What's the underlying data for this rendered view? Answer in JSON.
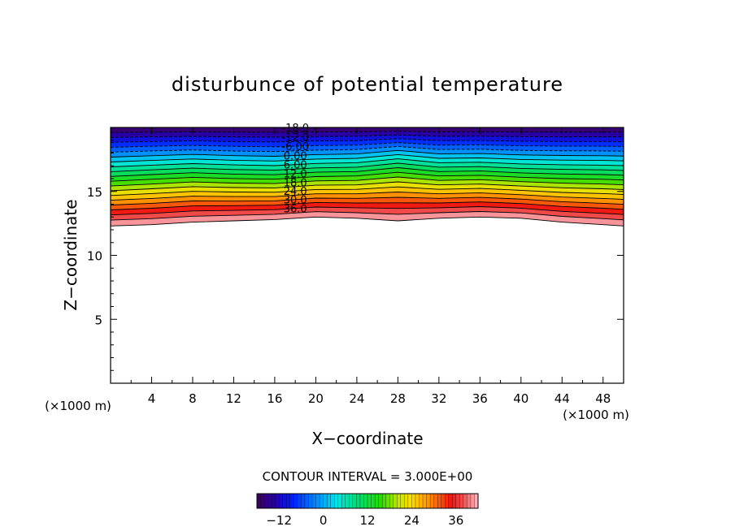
{
  "chart_data": {
    "type": "heatmap",
    "title": "disturbunce of potential temperature",
    "xlabel": "X−coordinate",
    "ylabel": "Z−coordinate",
    "xunit": "(×1000 m)",
    "zunit": "(×1000 m)",
    "xlim": [
      0,
      50
    ],
    "ylim": [
      0,
      20
    ],
    "xticks": [
      "4",
      "8",
      "12",
      "16",
      "20",
      "24",
      "28",
      "32",
      "36",
      "40",
      "44",
      "48"
    ],
    "yticks": [
      "5",
      "10",
      "15"
    ],
    "contour_interval_text": "CONTOUR INTERVAL = 3.000E+00",
    "contour_labels": [
      "-18.0",
      "-12.0",
      "-6.00",
      "0.00",
      "6.00",
      "12.0",
      "18.0",
      "24.0",
      "30.0",
      "36.0"
    ],
    "levels": [
      -18,
      -15,
      -12,
      -9,
      -6,
      -3,
      0,
      3,
      6,
      9,
      12,
      15,
      18,
      21,
      24,
      27,
      30,
      33,
      36,
      39,
      42
    ],
    "colorbar_ticks": [
      "−12",
      "0",
      "12",
      "24",
      "36"
    ],
    "colorbar_range": [
      -18,
      42
    ],
    "profile_x": [
      0,
      4,
      8,
      12,
      16,
      20,
      24,
      28,
      32,
      36,
      40,
      44,
      48,
      50
    ],
    "lower_edge_z": [
      12.3,
      12.4,
      12.6,
      12.7,
      12.8,
      13.0,
      12.9,
      12.7,
      12.9,
      13.0,
      12.9,
      12.6,
      12.4,
      12.3
    ],
    "level_offsets": [
      -0.2,
      -0.1,
      -0.05,
      -0.2,
      -0.3,
      -0.2,
      -0.1,
      0.3,
      -0.1,
      -0.1,
      -0.2,
      -0.15,
      -0.1,
      -0.1
    ]
  }
}
